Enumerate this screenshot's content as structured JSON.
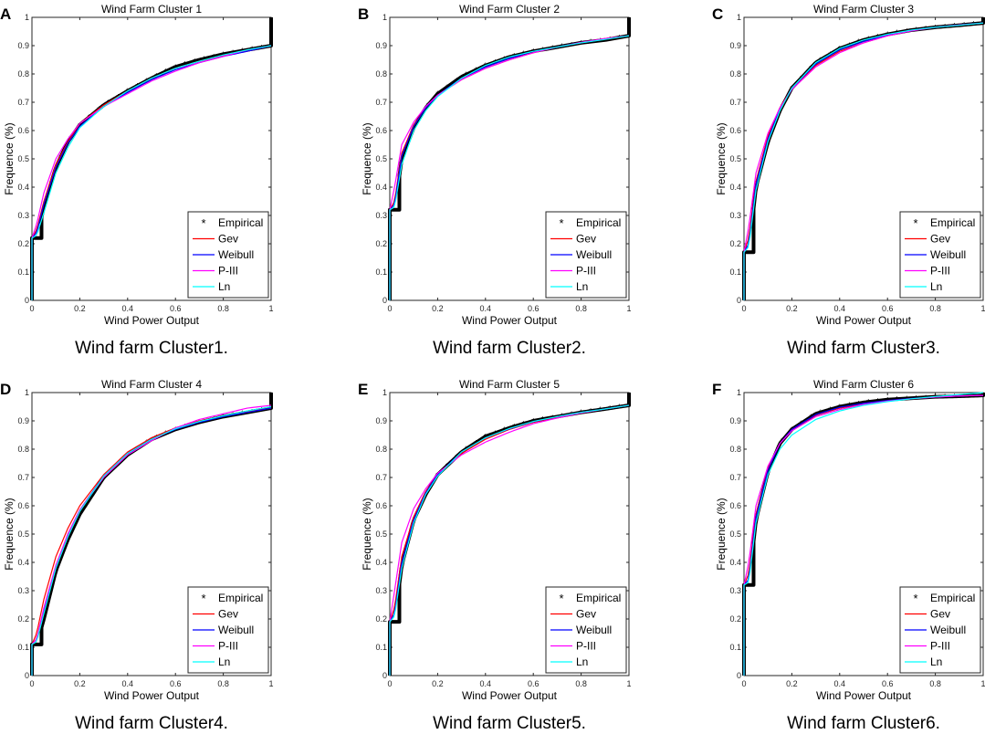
{
  "figure": {
    "x_tick_labels": [
      "0",
      "0.2",
      "0.4",
      "0.6",
      "0.8",
      "1"
    ],
    "y_tick_labels": [
      "0",
      "0.1",
      "0.2",
      "0.3",
      "0.4",
      "0.5",
      "0.6",
      "0.7",
      "0.8",
      "0.9",
      "1"
    ]
  },
  "chart_data": [
    {
      "type": "line",
      "panel_letter": "A",
      "title": "Wind Farm Cluster 1",
      "xlabel": "Wind Power Output",
      "ylabel": "Frequence (%)",
      "caption": "Wind farm Cluster1.",
      "legend_position": "bottom-right",
      "xlim": [
        0,
        1
      ],
      "ylim": [
        0,
        1
      ],
      "zero_mass": 0.22,
      "empirical_start": 0.04,
      "tail_end": 0.9,
      "x": [
        0,
        0.02,
        0.05,
        0.1,
        0.15,
        0.2,
        0.3,
        0.4,
        0.5,
        0.6,
        0.7,
        0.8,
        0.9,
        1
      ],
      "series": [
        {
          "name": "Empirical",
          "color": "#000000",
          "marker": "*",
          "values": [
            0.22,
            0.22,
            0.33,
            0.47,
            0.56,
            0.62,
            0.69,
            0.74,
            0.785,
            0.825,
            0.85,
            0.87,
            0.885,
            0.9
          ]
        },
        {
          "name": "Gev",
          "color": "#ff0000",
          "values": [
            0.22,
            0.25,
            0.35,
            0.48,
            0.56,
            0.625,
            0.69,
            0.74,
            0.785,
            0.82,
            0.845,
            0.865,
            0.88,
            0.9
          ]
        },
        {
          "name": "Weibull",
          "color": "#0000ff",
          "values": [
            0.22,
            0.24,
            0.34,
            0.47,
            0.555,
            0.615,
            0.685,
            0.735,
            0.78,
            0.815,
            0.84,
            0.862,
            0.88,
            0.9
          ]
        },
        {
          "name": "P-III",
          "color": "#ff00ff",
          "values": [
            0.22,
            0.27,
            0.38,
            0.5,
            0.57,
            0.625,
            0.685,
            0.73,
            0.775,
            0.81,
            0.84,
            0.862,
            0.885,
            0.9
          ]
        },
        {
          "name": "Ln",
          "color": "#00ffff",
          "values": [
            0.22,
            0.23,
            0.31,
            0.45,
            0.54,
            0.61,
            0.685,
            0.74,
            0.785,
            0.82,
            0.845,
            0.867,
            0.885,
            0.9
          ]
        }
      ]
    },
    {
      "type": "line",
      "panel_letter": "B",
      "title": "Wind Farm Cluster 2",
      "xlabel": "Wind Power Output",
      "ylabel": "Frequence (%)",
      "caption": "Wind farm Cluster2.",
      "legend_position": "bottom-right",
      "xlim": [
        0,
        1
      ],
      "ylim": [
        0,
        1
      ],
      "zero_mass": 0.32,
      "empirical_start": 0.04,
      "tail_end": 0.935,
      "x": [
        0,
        0.02,
        0.05,
        0.1,
        0.15,
        0.2,
        0.3,
        0.4,
        0.5,
        0.6,
        0.7,
        0.8,
        0.9,
        1
      ],
      "series": [
        {
          "name": "Empirical",
          "color": "#000000",
          "marker": "*",
          "values": [
            0.32,
            0.32,
            0.5,
            0.61,
            0.68,
            0.73,
            0.79,
            0.83,
            0.86,
            0.88,
            0.895,
            0.91,
            0.92,
            0.935
          ]
        },
        {
          "name": "Gev",
          "color": "#ff0000",
          "values": [
            0.32,
            0.35,
            0.52,
            0.62,
            0.68,
            0.725,
            0.78,
            0.82,
            0.85,
            0.875,
            0.895,
            0.91,
            0.925,
            0.935
          ]
        },
        {
          "name": "Weibull",
          "color": "#0000ff",
          "values": [
            0.32,
            0.34,
            0.51,
            0.615,
            0.68,
            0.725,
            0.785,
            0.825,
            0.855,
            0.88,
            0.895,
            0.91,
            0.923,
            0.935
          ]
        },
        {
          "name": "P-III",
          "color": "#ff00ff",
          "values": [
            0.32,
            0.4,
            0.55,
            0.63,
            0.685,
            0.725,
            0.78,
            0.82,
            0.85,
            0.875,
            0.895,
            0.912,
            0.925,
            0.935
          ]
        },
        {
          "name": "Ln",
          "color": "#00ffff",
          "values": [
            0.32,
            0.33,
            0.48,
            0.6,
            0.67,
            0.72,
            0.785,
            0.83,
            0.86,
            0.88,
            0.895,
            0.91,
            0.922,
            0.935
          ]
        }
      ]
    },
    {
      "type": "line",
      "panel_letter": "C",
      "title": "Wind Farm Cluster 3",
      "xlabel": "Wind Power Output",
      "ylabel": "Frequence (%)",
      "caption": "Wind farm Cluster3.",
      "legend_position": "bottom-right",
      "xlim": [
        0,
        1
      ],
      "ylim": [
        0,
        1
      ],
      "zero_mass": 0.17,
      "empirical_start": 0.04,
      "tail_end": 0.98,
      "x": [
        0,
        0.02,
        0.05,
        0.1,
        0.15,
        0.2,
        0.3,
        0.4,
        0.5,
        0.6,
        0.7,
        0.8,
        0.9,
        1
      ],
      "series": [
        {
          "name": "Empirical",
          "color": "#000000",
          "marker": "*",
          "values": [
            0.17,
            0.17,
            0.4,
            0.56,
            0.67,
            0.75,
            0.84,
            0.89,
            0.92,
            0.94,
            0.955,
            0.965,
            0.972,
            0.98
          ]
        },
        {
          "name": "Gev",
          "color": "#ff0000",
          "values": [
            0.17,
            0.22,
            0.42,
            0.58,
            0.68,
            0.75,
            0.83,
            0.88,
            0.91,
            0.935,
            0.953,
            0.965,
            0.973,
            0.98
          ]
        },
        {
          "name": "Weibull",
          "color": "#0000ff",
          "values": [
            0.17,
            0.2,
            0.41,
            0.57,
            0.675,
            0.75,
            0.835,
            0.885,
            0.915,
            0.938,
            0.955,
            0.965,
            0.973,
            0.98
          ]
        },
        {
          "name": "P-III",
          "color": "#ff00ff",
          "values": [
            0.17,
            0.26,
            0.45,
            0.59,
            0.68,
            0.745,
            0.825,
            0.875,
            0.91,
            0.935,
            0.952,
            0.965,
            0.973,
            0.98
          ]
        },
        {
          "name": "Ln",
          "color": "#00ffff",
          "values": [
            0.17,
            0.19,
            0.39,
            0.56,
            0.67,
            0.75,
            0.84,
            0.89,
            0.92,
            0.94,
            0.955,
            0.965,
            0.972,
            0.98
          ]
        }
      ]
    },
    {
      "type": "line",
      "panel_letter": "D",
      "title": "Wind Farm Cluster 4",
      "xlabel": "Wind Power Output",
      "ylabel": "Frequence (%)",
      "caption": "Wind farm Cluster4.",
      "legend_position": "bottom-right",
      "xlim": [
        0,
        1
      ],
      "ylim": [
        0,
        1
      ],
      "zero_mass": 0.11,
      "empirical_start": 0.04,
      "tail_end": 0.95,
      "x": [
        0,
        0.02,
        0.05,
        0.1,
        0.15,
        0.2,
        0.3,
        0.4,
        0.5,
        0.6,
        0.7,
        0.8,
        0.9,
        1
      ],
      "series": [
        {
          "name": "Empirical",
          "color": "#000000",
          "marker": "*",
          "values": [
            0.11,
            0.11,
            0.2,
            0.37,
            0.48,
            0.57,
            0.7,
            0.78,
            0.835,
            0.87,
            0.895,
            0.915,
            0.93,
            0.945
          ]
        },
        {
          "name": "Gev",
          "color": "#ff0000",
          "values": [
            0.11,
            0.15,
            0.27,
            0.42,
            0.52,
            0.6,
            0.71,
            0.79,
            0.84,
            0.875,
            0.9,
            0.918,
            0.933,
            0.945
          ]
        },
        {
          "name": "Weibull",
          "color": "#0000ff",
          "values": [
            0.11,
            0.13,
            0.23,
            0.38,
            0.5,
            0.585,
            0.705,
            0.785,
            0.835,
            0.87,
            0.895,
            0.915,
            0.93,
            0.945
          ]
        },
        {
          "name": "P-III",
          "color": "#ff00ff",
          "values": [
            0.11,
            0.13,
            0.24,
            0.39,
            0.5,
            0.585,
            0.7,
            0.78,
            0.83,
            0.875,
            0.905,
            0.925,
            0.945,
            0.955
          ]
        },
        {
          "name": "Ln",
          "color": "#00ffff",
          "values": [
            0.11,
            0.12,
            0.22,
            0.38,
            0.49,
            0.58,
            0.705,
            0.785,
            0.835,
            0.872,
            0.898,
            0.918,
            0.935,
            0.95
          ]
        }
      ]
    },
    {
      "type": "line",
      "panel_letter": "E",
      "title": "Wind Farm Cluster 5",
      "xlabel": "Wind Power Output",
      "ylabel": "Frequence (%)",
      "caption": "Wind farm Cluster5.",
      "legend_position": "bottom-right",
      "xlim": [
        0,
        1
      ],
      "ylim": [
        0,
        1
      ],
      "zero_mass": 0.19,
      "empirical_start": 0.04,
      "tail_end": 0.955,
      "x": [
        0,
        0.02,
        0.05,
        0.1,
        0.15,
        0.2,
        0.3,
        0.4,
        0.5,
        0.6,
        0.7,
        0.8,
        0.9,
        1
      ],
      "series": [
        {
          "name": "Empirical",
          "color": "#000000",
          "marker": "*",
          "values": [
            0.19,
            0.19,
            0.39,
            0.55,
            0.64,
            0.71,
            0.79,
            0.845,
            0.875,
            0.9,
            0.915,
            0.93,
            0.942,
            0.955
          ]
        },
        {
          "name": "Gev",
          "color": "#ff0000",
          "values": [
            0.19,
            0.24,
            0.42,
            0.56,
            0.65,
            0.71,
            0.785,
            0.835,
            0.87,
            0.895,
            0.913,
            0.928,
            0.942,
            0.955
          ]
        },
        {
          "name": "Weibull",
          "color": "#0000ff",
          "values": [
            0.19,
            0.22,
            0.4,
            0.55,
            0.645,
            0.71,
            0.79,
            0.84,
            0.872,
            0.897,
            0.915,
            0.93,
            0.942,
            0.955
          ]
        },
        {
          "name": "P-III",
          "color": "#ff00ff",
          "values": [
            0.19,
            0.3,
            0.47,
            0.59,
            0.66,
            0.715,
            0.78,
            0.825,
            0.86,
            0.89,
            0.91,
            0.928,
            0.942,
            0.955
          ]
        },
        {
          "name": "Ln",
          "color": "#00ffff",
          "values": [
            0.19,
            0.21,
            0.38,
            0.54,
            0.64,
            0.705,
            0.79,
            0.84,
            0.873,
            0.898,
            0.915,
            0.93,
            0.942,
            0.955
          ]
        }
      ]
    },
    {
      "type": "line",
      "panel_letter": "F",
      "title": "Wind Farm Cluster 6",
      "xlabel": "Wind Power Output",
      "ylabel": "Frequence (%)",
      "caption": "Wind farm Cluster6.",
      "legend_position": "bottom-right",
      "xlim": [
        0,
        1
      ],
      "ylim": [
        0,
        1
      ],
      "zero_mass": 0.32,
      "empirical_start": 0.04,
      "tail_end": 0.99,
      "x": [
        0,
        0.02,
        0.05,
        0.1,
        0.15,
        0.2,
        0.3,
        0.4,
        0.5,
        0.6,
        0.7,
        0.8,
        0.9,
        1
      ],
      "series": [
        {
          "name": "Empirical",
          "color": "#000000",
          "marker": "*",
          "values": [
            0.32,
            0.32,
            0.55,
            0.72,
            0.82,
            0.87,
            0.925,
            0.95,
            0.965,
            0.975,
            0.98,
            0.985,
            0.987,
            0.99
          ]
        },
        {
          "name": "Gev",
          "color": "#ff0000",
          "values": [
            0.32,
            0.36,
            0.57,
            0.73,
            0.82,
            0.87,
            0.92,
            0.945,
            0.96,
            0.97,
            0.978,
            0.984,
            0.988,
            0.99
          ]
        },
        {
          "name": "Weibull",
          "color": "#0000ff",
          "values": [
            0.32,
            0.34,
            0.56,
            0.725,
            0.82,
            0.87,
            0.922,
            0.948,
            0.962,
            0.972,
            0.979,
            0.984,
            0.988,
            0.99
          ]
        },
        {
          "name": "P-III",
          "color": "#ff00ff",
          "values": [
            0.32,
            0.4,
            0.6,
            0.74,
            0.82,
            0.865,
            0.915,
            0.94,
            0.958,
            0.97,
            0.978,
            0.984,
            0.988,
            0.99
          ]
        },
        {
          "name": "Ln",
          "color": "#00ffff",
          "values": [
            0.32,
            0.33,
            0.54,
            0.71,
            0.8,
            0.85,
            0.905,
            0.935,
            0.955,
            0.968,
            0.978,
            0.986,
            0.993,
            1.0
          ]
        }
      ]
    }
  ]
}
